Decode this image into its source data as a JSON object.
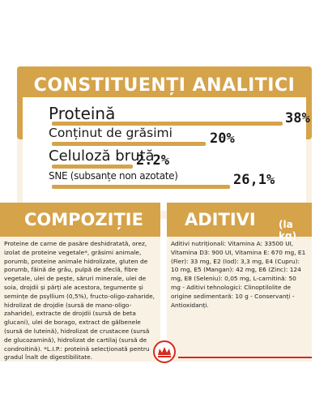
{
  "analysis": {
    "title": "CONSTITUENȚI ANALITICI",
    "rows": [
      {
        "label": "Proteină",
        "value": "38%",
        "fraction": 0.38
      },
      {
        "label": "Conținut de grăsimi",
        "value": "20%",
        "fraction": 0.2
      },
      {
        "label": "Celuloză brută",
        "value": "2.2%",
        "fraction": 0.022
      },
      {
        "label": "SNE (subsanțe non azotate)",
        "value": "26,1%",
        "fraction": 0.261
      }
    ]
  },
  "composition": {
    "title": "COMPOZIȚIE",
    "text": "Proteine de carne de pasăre deshidratată, orez, izolat de proteine vegetale*, grăsimi animale, porumb, proteine animale hidrolizate, gluten de porumb, făină de grâu, pulpă de sfeclă, fibre vegetale, ulei de pește, săruri minerale, ulei de soia, drojdii și părți ale acestora, tegumente și semințe de psyllium (0,5%), fructo-oligo-zaharide, hidrolizat de drojdie (sursă de mano-oligo-zaharide), extracte de drojdii (sursă de beta glucani), ulei de borago, extract de gălbenele (sursă de luteină), hidrolizat de crustacee (sursă de glucozamină), hidrolizat de cartilaj (sursă de condroitină). *L.I.P.: proteină selecționată pentru gradul înalt de digestibilitate."
  },
  "additives": {
    "title": "ADITIVI",
    "unit": "(la kg)",
    "text": "Aditivi nutriționali: Vitamina A: 33500 UI, Vitamina D3: 900 UI, Vitamina E: 670 mg, E1 (Fier): 33 mg, E2 (Iod): 3,3 mg, E4 (Cupru): 10 mg, E5 (Mangan): 42 mg, E6 (Zinc): 124 mg, E8 (Seleniu): 0,05 mg, L-carnitină: 50 mg - Aditivi tehnologici: Clinoptilolite de origine sedimentară: 10 g - Conservanți - Antioxidanți."
  },
  "brand": {
    "logo_icon": "royal-canin-crown-icon",
    "accent": "#d5a34a",
    "red": "#d52b1e",
    "panel": "#f9f1e4"
  }
}
